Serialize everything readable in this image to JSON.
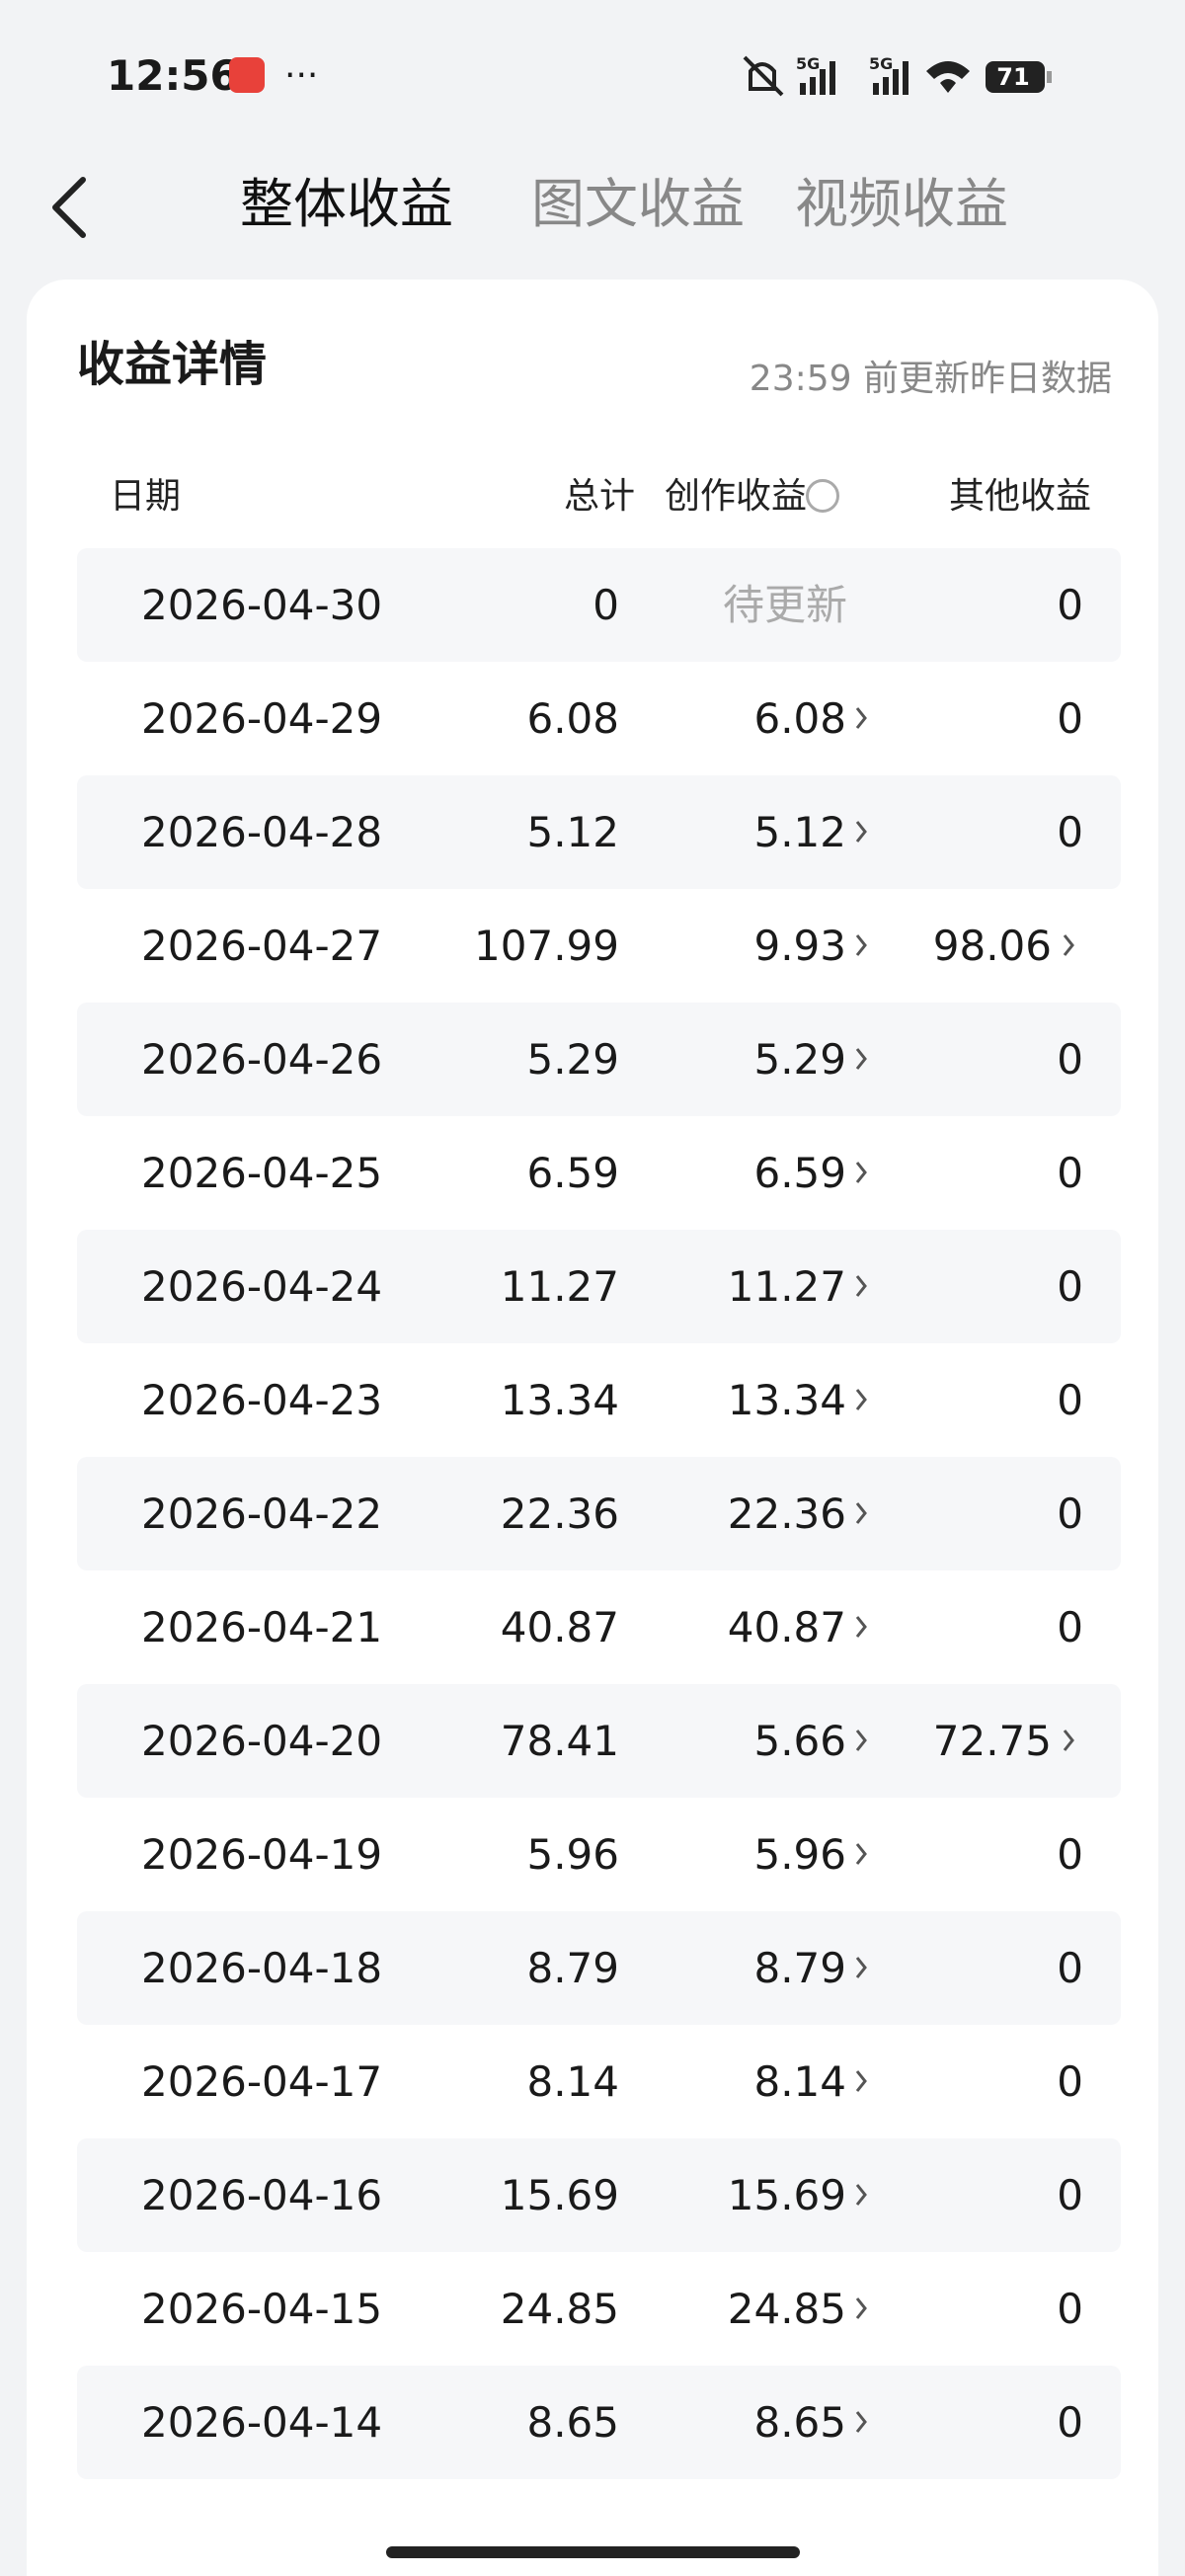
{
  "status_bar": {
    "time": "12:56",
    "more": "···",
    "signal_1": "5G",
    "signal_2": "5G",
    "battery": "71"
  },
  "tabs": [
    "整体收益",
    "图文收益",
    "视频收益"
  ],
  "card": {
    "title": "收益详情",
    "note": "23:59 前更新昨日数据"
  },
  "table": {
    "headers": [
      "日期",
      "总计",
      "创作收益",
      "其他收益"
    ],
    "rows": [
      [
        "2026-04-30",
        "0",
        "待更新",
        "0"
      ],
      [
        "2026-04-29",
        "6.08",
        "6.08",
        "0"
      ],
      [
        "2026-04-28",
        "5.12",
        "5.12",
        "0"
      ],
      [
        "2026-04-27",
        "107.99",
        "9.93",
        "98.06"
      ],
      [
        "2026-04-26",
        "5.29",
        "5.29",
        "0"
      ],
      [
        "2026-04-25",
        "6.59",
        "6.59",
        "0"
      ],
      [
        "2026-04-24",
        "11.27",
        "11.27",
        "0"
      ],
      [
        "2026-04-23",
        "13.34",
        "13.34",
        "0"
      ],
      [
        "2026-04-22",
        "22.36",
        "22.36",
        "0"
      ],
      [
        "2026-04-21",
        "40.87",
        "40.87",
        "0"
      ],
      [
        "2026-04-20",
        "78.41",
        "5.66",
        "72.75"
      ],
      [
        "2026-04-19",
        "5.96",
        "5.96",
        "0"
      ],
      [
        "2026-04-18",
        "8.79",
        "8.79",
        "0"
      ],
      [
        "2026-04-17",
        "8.14",
        "8.14",
        "0"
      ],
      [
        "2026-04-16",
        "15.69",
        "15.69",
        "0"
      ],
      [
        "2026-04-15",
        "24.85",
        "24.85",
        "0"
      ],
      [
        "2026-04-14",
        "8.65",
        "8.65",
        "0"
      ]
    ]
  }
}
